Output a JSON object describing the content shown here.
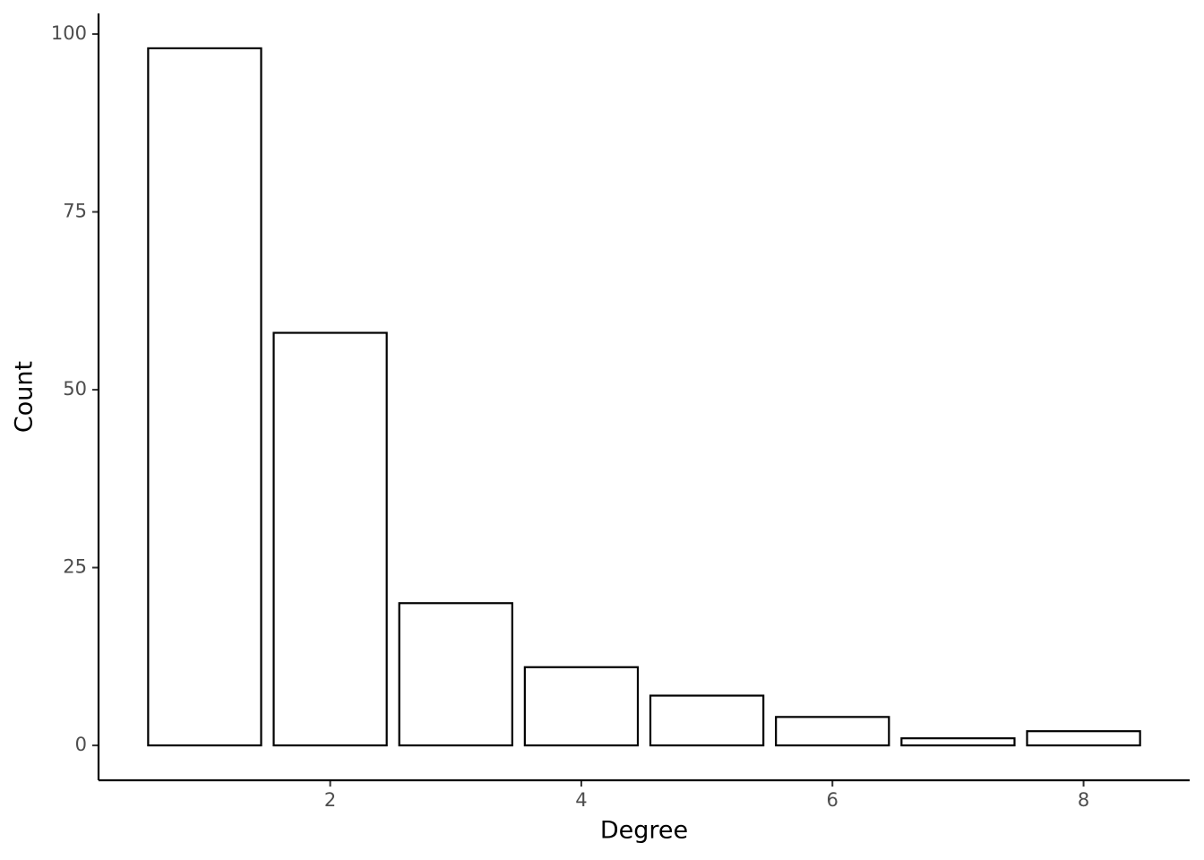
{
  "chart_data": {
    "type": "bar",
    "x_label": "Degree",
    "y_label": "Count",
    "x": [
      1,
      2,
      3,
      4,
      5,
      6,
      7,
      8
    ],
    "values": [
      98,
      58,
      20,
      11,
      7,
      4,
      1,
      2
    ],
    "color": "#ffffff",
    "edge_color": "#000000",
    "xlim": [
      0.155,
      8.845
    ],
    "xticks": [
      2,
      4,
      6,
      8
    ],
    "ylim": [
      -4.9,
      102.9
    ],
    "yticks": [
      0,
      25,
      50,
      75,
      100
    ],
    "grid": false
  }
}
